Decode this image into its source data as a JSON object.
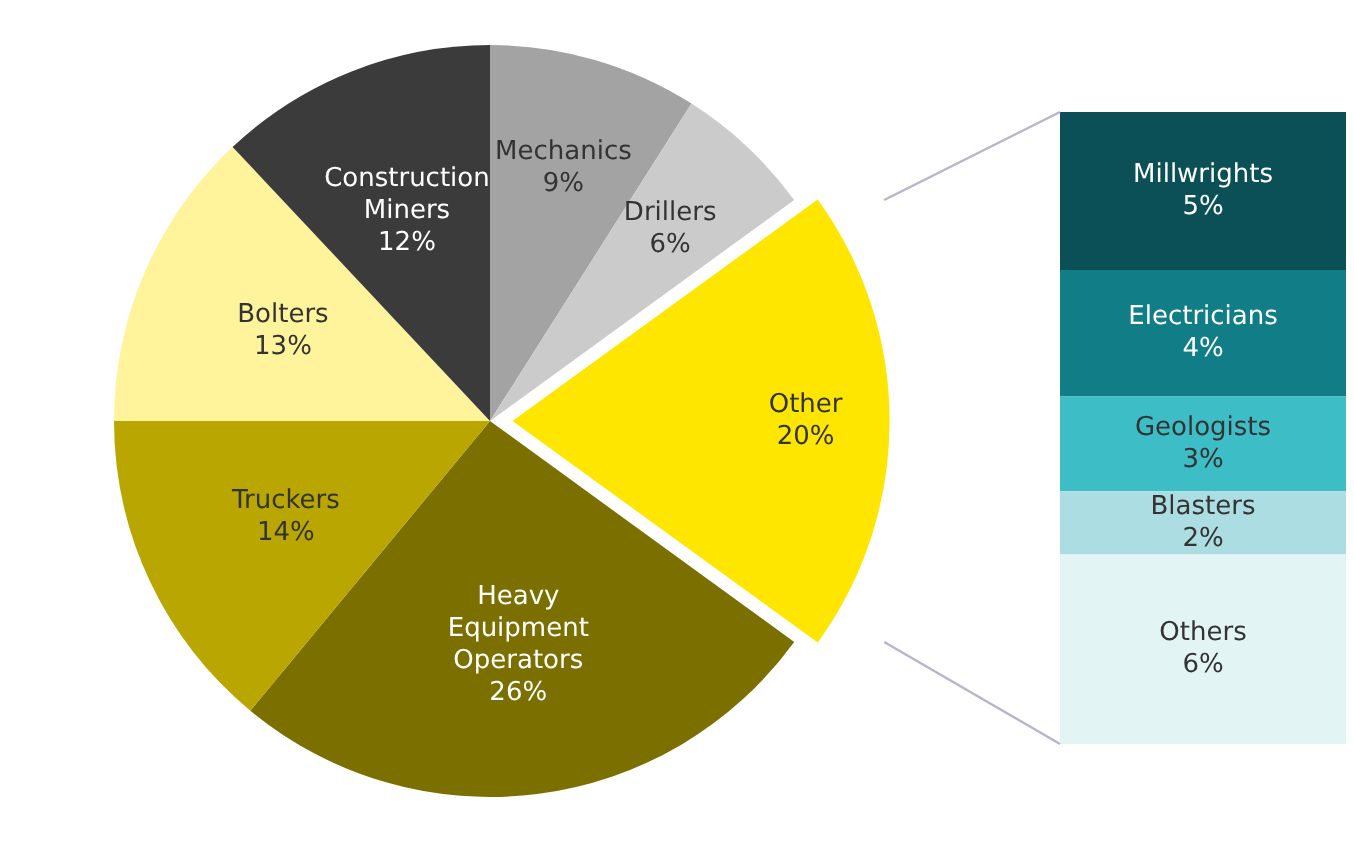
{
  "chart_data": [
    {
      "type": "pie",
      "categories": [
        "Mechanics",
        "Drillers",
        "Other",
        "Heavy Equipment Operators",
        "Truckers",
        "Bolters",
        "Construction Miners"
      ],
      "values": [
        9,
        6,
        20,
        26,
        14,
        13,
        12
      ],
      "value_labels": [
        "9%",
        "6%",
        "20%",
        "26%",
        "14%",
        "13%",
        "12%"
      ],
      "colors": [
        "#a3a3a3",
        "#cbcbcb",
        "#ffe600",
        "#7b6f00",
        "#b9a600",
        "#fff39c",
        "#3b3b3b"
      ],
      "legend": false
    },
    {
      "type": "bar",
      "stacked": true,
      "categories": [
        null
      ],
      "ylim": [
        0,
        20
      ],
      "tick_labels": false,
      "legend": false,
      "series": [
        {
          "name": "Others",
          "color": "#e3f4f5",
          "values": [
            6
          ],
          "value_labels": [
            "6%"
          ]
        },
        {
          "name": "Blasters",
          "color": "#abdde2",
          "values": [
            2
          ],
          "value_labels": [
            "2%"
          ]
        },
        {
          "name": "Geologists",
          "color": "#3dbdc5",
          "values": [
            3
          ],
          "value_labels": [
            "3%"
          ]
        },
        {
          "name": "Electricians",
          "color": "#117d86",
          "values": [
            4
          ],
          "value_labels": [
            "4%"
          ]
        },
        {
          "name": "Millwrights",
          "color": "#0b5057",
          "values": [
            5
          ],
          "value_labels": [
            "5%"
          ]
        }
      ]
    }
  ]
}
